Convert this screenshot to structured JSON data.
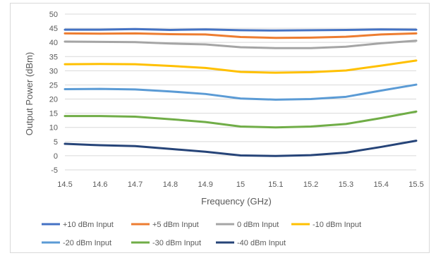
{
  "chart_data": {
    "type": "line",
    "title": "",
    "xlabel": "Frequency (GHz)",
    "ylabel": "Output Power (dBm)",
    "x": [
      14.5,
      14.6,
      14.7,
      14.8,
      14.9,
      15.0,
      15.1,
      15.2,
      15.3,
      15.4,
      15.5
    ],
    "x_tick_labels": [
      "14.5",
      "14.6",
      "14.7",
      "14.8",
      "14.9",
      "15",
      "15.1",
      "15.2",
      "15.3",
      "15.4",
      "15.5"
    ],
    "y_ticks": [
      -5,
      0,
      5,
      10,
      15,
      20,
      25,
      30,
      35,
      40,
      45,
      50
    ],
    "ylim": [
      -5,
      50
    ],
    "xlim": [
      14.5,
      15.5
    ],
    "grid": "horizontal",
    "legend_position": "bottom",
    "series": [
      {
        "name": "+10 dBm Input",
        "color": "#4472c4",
        "values": [
          44.5,
          44.5,
          44.7,
          44.4,
          44.6,
          44.3,
          44.2,
          44.3,
          44.4,
          44.6,
          44.5
        ]
      },
      {
        "name": "+5 dBm Input",
        "color": "#ed7d31",
        "values": [
          43.2,
          43.1,
          43.2,
          42.9,
          42.8,
          41.9,
          41.6,
          41.7,
          42.0,
          42.8,
          43.2
        ]
      },
      {
        "name": "0 dBm Input",
        "color": "#a5a5a5",
        "values": [
          40.3,
          40.2,
          40.1,
          39.6,
          39.3,
          38.3,
          38.0,
          38.0,
          38.5,
          39.7,
          40.6
        ]
      },
      {
        "name": "-10 dBm Input",
        "color": "#ffc000",
        "values": [
          32.3,
          32.4,
          32.3,
          31.7,
          31.0,
          29.6,
          29.3,
          29.5,
          30.1,
          31.8,
          33.6
        ]
      },
      {
        "name": "-20 dBm Input",
        "color": "#5b9bd5",
        "values": [
          23.5,
          23.6,
          23.4,
          22.7,
          21.8,
          20.2,
          19.8,
          20.0,
          20.8,
          23.0,
          25.1
        ]
      },
      {
        "name": "-30 dBm Input",
        "color": "#70ad47",
        "values": [
          14.0,
          14.0,
          13.8,
          12.9,
          11.9,
          10.3,
          10.0,
          10.3,
          11.2,
          13.3,
          15.6
        ]
      },
      {
        "name": "-40 dBm Input",
        "color": "#264478",
        "values": [
          4.2,
          3.7,
          3.4,
          2.4,
          1.4,
          0.1,
          -0.1,
          0.2,
          1.1,
          3.1,
          5.3
        ]
      }
    ]
  }
}
